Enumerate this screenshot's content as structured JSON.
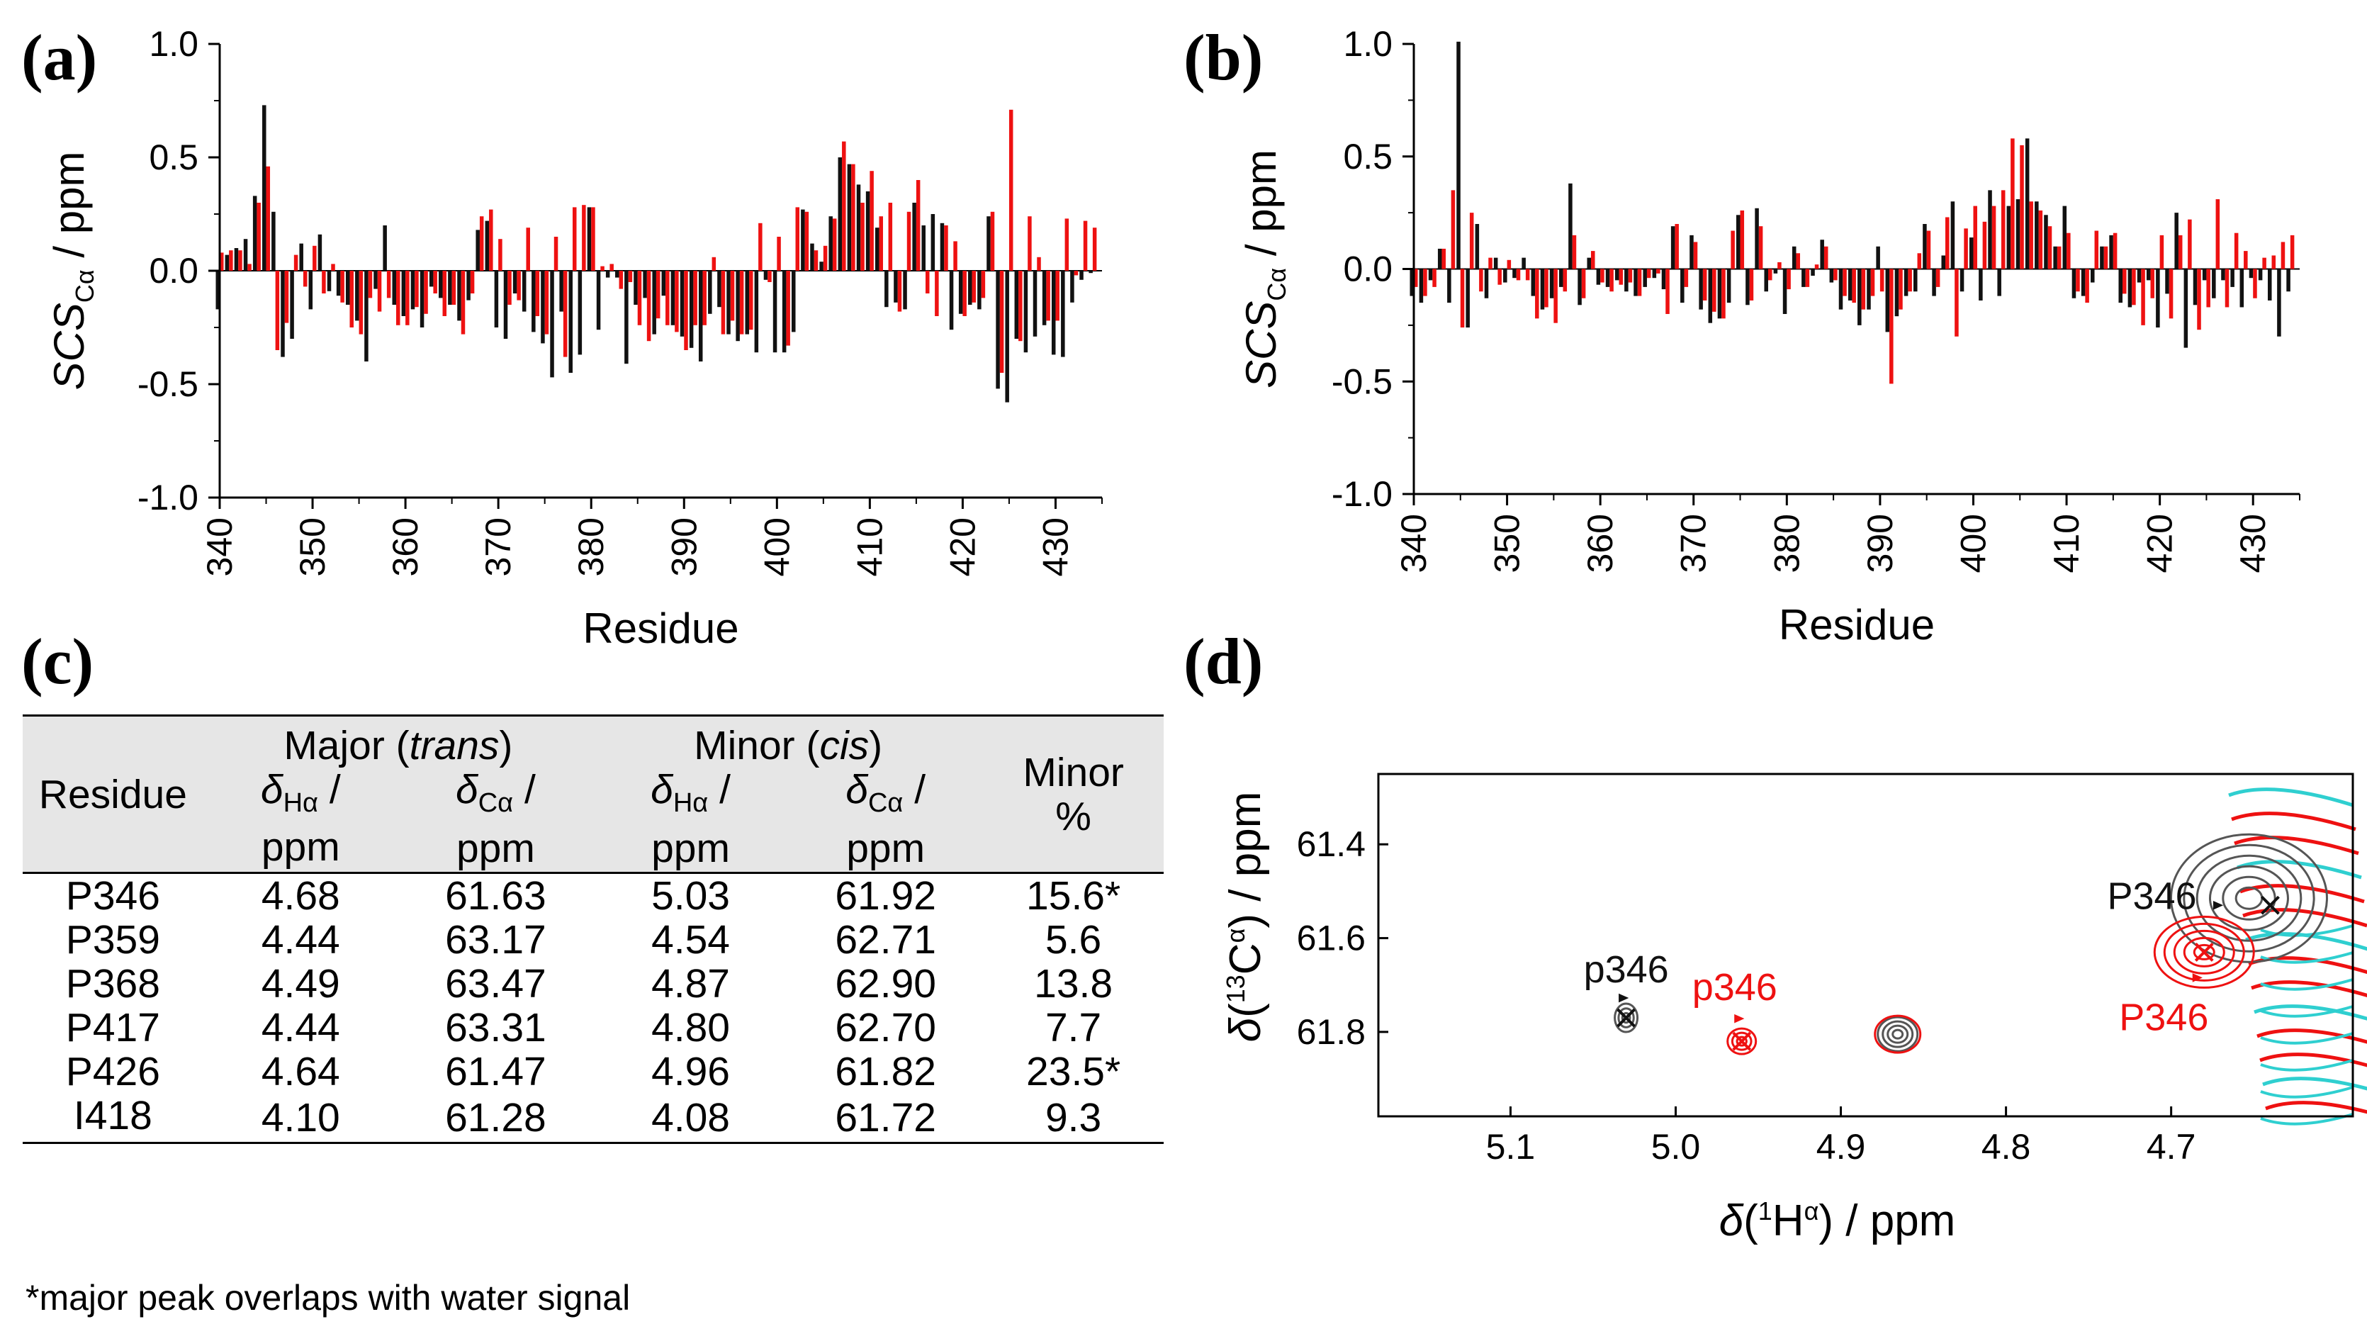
{
  "panels": {
    "a": "(a)",
    "b": "(b)",
    "c": "(c)",
    "d": "(d)"
  },
  "colors": {
    "black": "#111111",
    "red": "#ee1111",
    "cyan": "#2fcfd0",
    "grey": "#555555"
  },
  "chart_data": [
    {
      "panel": "a",
      "type": "bar",
      "xlabel": "Residue",
      "ylabel": "SCS",
      "ylabel_sub": "Cα",
      "ylabel_unit": " / ppm",
      "xlim": [
        340,
        435
      ],
      "ylim": [
        -1.0,
        1.0
      ],
      "x_ticks": [
        340,
        350,
        360,
        370,
        380,
        390,
        400,
        410,
        420,
        430
      ],
      "y_ticks": [
        "1.0",
        "0.5",
        "0.0",
        "-0.5",
        "-1.0"
      ],
      "series": [
        {
          "color": "black",
          "x": [
            340,
            341,
            342,
            343,
            344,
            345,
            346,
            347,
            348,
            349,
            350,
            351,
            352,
            353,
            354,
            355,
            356,
            357,
            358,
            359,
            360,
            361,
            362,
            363,
            364,
            365,
            366,
            367,
            368,
            369,
            370,
            371,
            372,
            373,
            374,
            375,
            376,
            377,
            378,
            379,
            380,
            381,
            382,
            383,
            384,
            385,
            386,
            387,
            388,
            389,
            390,
            391,
            392,
            393,
            394,
            395,
            396,
            397,
            398,
            399,
            400,
            401,
            402,
            403,
            404,
            405,
            406,
            407,
            408,
            409,
            410,
            411,
            412,
            413,
            414,
            415,
            416,
            417,
            418,
            419,
            420,
            421,
            422,
            423,
            424,
            425,
            426,
            427,
            428,
            429,
            430,
            431,
            432,
            433,
            434
          ],
          "values": [
            -0.17,
            0.07,
            0.1,
            0.14,
            0.33,
            0.73,
            0.26,
            -0.38,
            -0.3,
            0.12,
            -0.17,
            0.16,
            -0.09,
            -0.11,
            -0.15,
            -0.22,
            -0.4,
            -0.08,
            0.2,
            -0.15,
            -0.2,
            -0.17,
            -0.25,
            -0.07,
            -0.12,
            -0.15,
            -0.22,
            -0.13,
            0.18,
            0.22,
            -0.25,
            -0.3,
            -0.1,
            -0.18,
            -0.27,
            -0.32,
            -0.47,
            -0.18,
            -0.45,
            -0.37,
            0.28,
            -0.26,
            -0.03,
            -0.03,
            -0.41,
            -0.15,
            -0.12,
            -0.28,
            -0.11,
            -0.24,
            -0.29,
            -0.34,
            -0.4,
            -0.19,
            -0.16,
            -0.28,
            -0.31,
            -0.28,
            -0.36,
            -0.04,
            -0.36,
            -0.36,
            -0.27,
            0.27,
            0.12,
            0.04,
            0.24,
            0.5,
            0.47,
            0.38,
            0.35,
            0.19,
            -0.16,
            -0.14,
            -0.17,
            0.3,
            0.2,
            0.25,
            0.21,
            -0.26,
            -0.19,
            -0.15,
            -0.17,
            0.24,
            -0.52,
            -0.58,
            -0.3,
            -0.36,
            -0.29,
            -0.24,
            -0.37,
            -0.38,
            -0.14,
            -0.04,
            -0.01
          ]
        },
        {
          "color": "red",
          "x": [
            340,
            341,
            342,
            343,
            344,
            345,
            346,
            347,
            348,
            349,
            350,
            351,
            352,
            353,
            354,
            355,
            356,
            357,
            358,
            359,
            360,
            361,
            362,
            363,
            364,
            365,
            366,
            367,
            368,
            369,
            370,
            371,
            372,
            373,
            374,
            375,
            376,
            377,
            378,
            379,
            380,
            381,
            382,
            383,
            384,
            385,
            386,
            387,
            388,
            389,
            390,
            391,
            392,
            393,
            394,
            395,
            396,
            397,
            398,
            399,
            400,
            401,
            402,
            403,
            404,
            405,
            406,
            407,
            408,
            409,
            410,
            411,
            412,
            413,
            414,
            415,
            416,
            417,
            418,
            419,
            420,
            421,
            422,
            423,
            424,
            425,
            426,
            427,
            428,
            429,
            430,
            431,
            432,
            433,
            434
          ],
          "values": [
            0.08,
            0.09,
            0.09,
            0.03,
            0.3,
            0.46,
            -0.35,
            -0.23,
            0.07,
            -0.07,
            0.11,
            -0.1,
            0.03,
            -0.14,
            -0.25,
            -0.28,
            -0.12,
            -0.18,
            -0.12,
            -0.24,
            -0.24,
            -0.16,
            -0.19,
            -0.1,
            -0.2,
            -0.15,
            -0.28,
            -0.1,
            0.24,
            0.27,
            0.14,
            -0.15,
            -0.13,
            0.19,
            -0.2,
            -0.28,
            0.15,
            -0.38,
            0.28,
            0.29,
            0.28,
            0.02,
            0.03,
            -0.08,
            -0.05,
            -0.24,
            -0.31,
            -0.21,
            -0.24,
            -0.27,
            -0.35,
            -0.24,
            -0.24,
            0.06,
            -0.28,
            -0.22,
            -0.28,
            -0.26,
            0.21,
            -0.05,
            0.15,
            -0.33,
            0.28,
            0.26,
            0.09,
            0.11,
            0.23,
            0.57,
            0.47,
            0.3,
            0.44,
            0.24,
            0.3,
            -0.18,
            0.26,
            0.4,
            -0.1,
            -0.2,
            0.2,
            0.13,
            -0.2,
            -0.14,
            -0.12,
            0.26,
            -0.45,
            0.71,
            -0.31,
            0.24,
            0.06,
            -0.22,
            -0.22,
            0.23,
            -0.02,
            0.22,
            0.19
          ]
        }
      ]
    },
    {
      "panel": "b",
      "type": "bar",
      "xlabel": "Residue",
      "ylabel": "SCS",
      "ylabel_sub": "Cα",
      "ylabel_unit": " / ppm",
      "xlim": [
        340,
        435
      ],
      "ylim": [
        -1.0,
        1.0
      ],
      "x_ticks": [
        340,
        350,
        360,
        370,
        380,
        390,
        400,
        410,
        420,
        430
      ],
      "y_ticks": [
        "1.0",
        "0.5",
        "0.0",
        "-0.5",
        "-1.0"
      ],
      "series": [
        {
          "color": "black",
          "x": [
            340,
            341,
            342,
            343,
            344,
            345,
            346,
            347,
            348,
            349,
            350,
            351,
            352,
            353,
            354,
            355,
            356,
            357,
            358,
            359,
            360,
            361,
            362,
            363,
            364,
            365,
            366,
            367,
            368,
            369,
            370,
            371,
            372,
            373,
            374,
            375,
            376,
            377,
            378,
            379,
            380,
            381,
            382,
            383,
            384,
            385,
            386,
            387,
            388,
            389,
            390,
            391,
            392,
            393,
            394,
            395,
            396,
            397,
            398,
            399,
            400,
            401,
            402,
            403,
            404,
            405,
            406,
            407,
            408,
            409,
            410,
            411,
            412,
            413,
            414,
            415,
            416,
            417,
            418,
            419,
            420,
            421,
            422,
            423,
            424,
            425,
            426,
            427,
            428,
            429,
            430,
            431,
            432,
            433,
            434
          ],
          "values": [
            -0.12,
            -0.15,
            -0.05,
            0.09,
            -0.15,
            1.01,
            -0.26,
            0.2,
            -0.13,
            0.05,
            -0.06,
            -0.04,
            0.05,
            -0.12,
            -0.18,
            -0.13,
            -0.08,
            0.38,
            -0.16,
            0.05,
            -0.07,
            -0.08,
            -0.05,
            -0.1,
            -0.12,
            -0.08,
            -0.04,
            -0.09,
            0.19,
            -0.15,
            0.15,
            -0.18,
            -0.24,
            -0.22,
            -0.15,
            0.24,
            -0.16,
            0.27,
            -0.1,
            -0.02,
            -0.2,
            0.1,
            -0.08,
            -0.03,
            0.13,
            -0.06,
            -0.18,
            -0.14,
            -0.25,
            -0.18,
            0.1,
            -0.28,
            -0.21,
            -0.12,
            -0.1,
            0.2,
            -0.12,
            0.06,
            0.3,
            -0.1,
            0.14,
            -0.14,
            0.35,
            -0.12,
            0.28,
            0.31,
            0.58,
            0.3,
            0.24,
            0.1,
            0.28,
            -0.13,
            -0.12,
            -0.06,
            0.1,
            0.15,
            -0.15,
            -0.17,
            -0.06,
            -0.05,
            -0.26,
            -0.11,
            0.25,
            -0.35,
            -0.16,
            -0.05,
            -0.13,
            -0.05,
            -0.08,
            -0.17,
            -0.04,
            -0.05,
            -0.14,
            -0.3,
            -0.1
          ]
        },
        {
          "color": "red",
          "x": [
            340,
            341,
            342,
            343,
            344,
            345,
            346,
            347,
            348,
            349,
            350,
            351,
            352,
            353,
            354,
            355,
            356,
            357,
            358,
            359,
            360,
            361,
            362,
            363,
            364,
            365,
            366,
            367,
            368,
            369,
            370,
            371,
            372,
            373,
            374,
            375,
            376,
            377,
            378,
            379,
            380,
            381,
            382,
            383,
            384,
            385,
            386,
            387,
            388,
            389,
            390,
            391,
            392,
            393,
            394,
            395,
            396,
            397,
            398,
            399,
            400,
            401,
            402,
            403,
            404,
            405,
            406,
            407,
            408,
            409,
            410,
            411,
            412,
            413,
            414,
            415,
            416,
            417,
            418,
            419,
            420,
            421,
            422,
            423,
            424,
            425,
            426,
            427,
            428,
            429,
            430,
            431,
            432,
            433,
            434
          ],
          "values": [
            -0.08,
            -0.12,
            -0.08,
            0.09,
            0.35,
            -0.26,
            0.25,
            -0.1,
            0.05,
            -0.07,
            0.04,
            -0.05,
            -0.05,
            -0.22,
            -0.17,
            -0.24,
            -0.1,
            0.15,
            -0.13,
            0.08,
            -0.06,
            -0.1,
            -0.07,
            -0.06,
            -0.12,
            -0.04,
            -0.02,
            -0.2,
            0.2,
            -0.08,
            0.12,
            -0.14,
            -0.19,
            -0.22,
            0.17,
            0.26,
            -0.14,
            0.19,
            -0.05,
            0.03,
            -0.09,
            0.07,
            -0.08,
            0.02,
            0.1,
            -0.05,
            -0.12,
            -0.15,
            -0.18,
            -0.12,
            -0.1,
            -0.51,
            -0.18,
            -0.1,
            0.07,
            0.17,
            -0.08,
            0.23,
            -0.3,
            0.18,
            0.28,
            0.21,
            0.28,
            0.35,
            0.58,
            0.55,
            0.3,
            0.26,
            0.19,
            0.1,
            0.16,
            -0.1,
            -0.15,
            0.17,
            0.1,
            0.16,
            -0.11,
            -0.16,
            -0.25,
            -0.13,
            0.15,
            -0.22,
            0.15,
            0.22,
            -0.27,
            -0.17,
            0.31,
            -0.17,
            0.16,
            0.08,
            -0.13,
            0.05,
            0.06,
            0.12,
            0.15
          ]
        }
      ]
    },
    {
      "panel": "d",
      "type": "scatter",
      "xlabel_pre": "δ(",
      "xlabel_sup": "1",
      "xlabel_post": "H",
      "xlabel_sup2": "α",
      "xlabel_unit": ") / ppm",
      "ylabel_pre": "δ(",
      "ylabel_sup": "13",
      "ylabel_post": "C",
      "ylabel_sup2": "α",
      "ylabel_unit": ") / ppm",
      "xlim": [
        5.18,
        4.59
      ],
      "ylim": [
        61.25,
        61.98
      ],
      "x_ticks": [
        "5.1",
        "5.0",
        "4.9",
        "4.8",
        "4.7"
      ],
      "x_tick_values": [
        5.1,
        5.0,
        4.9,
        4.8,
        4.7
      ],
      "y_ticks": [
        "61.4",
        "61.6",
        "61.8"
      ],
      "y_tick_values": [
        61.4,
        61.6,
        61.8
      ],
      "peaks": [
        {
          "label": "P346",
          "x": 4.64,
          "y": 61.53,
          "color": "black"
        },
        {
          "label": "p346",
          "x": 5.03,
          "y": 61.77,
          "color": "black"
        },
        {
          "label": "p346",
          "x": 4.96,
          "y": 61.82,
          "color": "red"
        },
        {
          "label": "P346",
          "x": 4.68,
          "y": 61.63,
          "color": "red"
        }
      ]
    }
  ],
  "table": {
    "headers": {
      "residue": "Residue",
      "major": "Major (",
      "major_it": "trans",
      "minor": "Minor (",
      "minor_it": "cis",
      "close": ")",
      "delta": "δ",
      "h_sub": "Hα",
      "c_sub": "Cα",
      "slash": " /",
      "ppm": "ppm",
      "minor_pct_1": "Minor",
      "minor_pct_2": "%"
    },
    "rows": [
      [
        "P346",
        "4.68",
        "61.63",
        "5.03",
        "61.92",
        "15.6*"
      ],
      [
        "P359",
        "4.44",
        "63.17",
        "4.54",
        "62.71",
        "5.6"
      ],
      [
        "P368",
        "4.49",
        "63.47",
        "4.87",
        "62.90",
        "13.8"
      ],
      [
        "P417",
        "4.44",
        "63.31",
        "4.80",
        "62.70",
        "7.7"
      ],
      [
        "P426",
        "4.64",
        "61.47",
        "4.96",
        "61.82",
        "23.5*"
      ],
      [
        "I418",
        "4.10",
        "61.28",
        "4.08",
        "61.72",
        "9.3"
      ]
    ],
    "footnote": "*major peak overlaps with water signal"
  }
}
